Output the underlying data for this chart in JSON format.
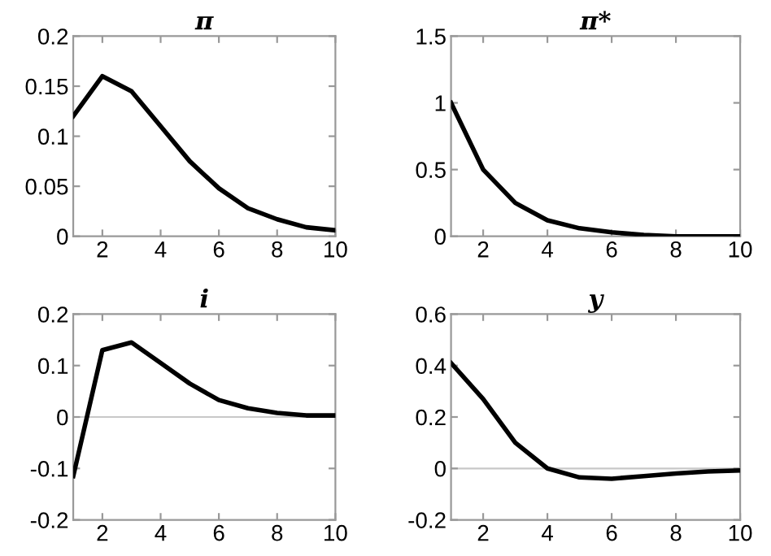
{
  "chart_data": [
    {
      "type": "line",
      "title": "π",
      "x": [
        1,
        2,
        3,
        4,
        5,
        6,
        7,
        8,
        9,
        10
      ],
      "series": [
        {
          "color": "#000000",
          "values": [
            0.12,
            0.16,
            0.145,
            0.11,
            0.075,
            0.048,
            0.028,
            0.017,
            0.009,
            0.006
          ]
        }
      ],
      "xlim": [
        1,
        10
      ],
      "xticks": [
        2,
        4,
        6,
        8,
        10
      ],
      "ylim": [
        0,
        0.2
      ],
      "yticks": [
        0,
        0.05,
        0.1,
        0.15,
        0.2
      ],
      "grid": false,
      "legend": false
    },
    {
      "type": "line",
      "title": "π*",
      "x": [
        1,
        2,
        3,
        4,
        5,
        6,
        7,
        8,
        9,
        10
      ],
      "series": [
        {
          "color": "#000000",
          "values": [
            1.0,
            0.5,
            0.25,
            0.12,
            0.06,
            0.03,
            0.01,
            0.0,
            0.0,
            0.0
          ]
        }
      ],
      "xlim": [
        1,
        10
      ],
      "xticks": [
        2,
        4,
        6,
        8,
        10
      ],
      "ylim": [
        0,
        1.5
      ],
      "yticks": [
        0,
        0.5,
        1,
        1.5
      ],
      "grid": false,
      "legend": false
    },
    {
      "type": "line",
      "title": "i",
      "x": [
        1,
        2,
        3,
        4,
        5,
        6,
        7,
        8,
        9,
        10
      ],
      "series": [
        {
          "color": "#000000",
          "values": [
            -0.115,
            0.13,
            0.145,
            0.105,
            0.065,
            0.033,
            0.017,
            0.008,
            0.003,
            0.003
          ]
        }
      ],
      "xlim": [
        1,
        10
      ],
      "xticks": [
        2,
        4,
        6,
        8,
        10
      ],
      "ylim": [
        -0.2,
        0.2
      ],
      "yticks": [
        -0.2,
        -0.1,
        0,
        0.1,
        0.2
      ],
      "ref_lines": [
        {
          "axis": "y",
          "value": 0,
          "color": "#c8c8c8"
        }
      ],
      "grid": false,
      "legend": false
    },
    {
      "type": "line",
      "title": "y",
      "x": [
        1,
        2,
        3,
        4,
        5,
        6,
        7,
        8,
        9,
        10
      ],
      "series": [
        {
          "color": "#000000",
          "values": [
            0.41,
            0.27,
            0.1,
            0.0,
            -0.035,
            -0.04,
            -0.03,
            -0.02,
            -0.012,
            -0.008
          ]
        }
      ],
      "xlim": [
        1,
        10
      ],
      "xticks": [
        2,
        4,
        6,
        8,
        10
      ],
      "ylim": [
        -0.2,
        0.6
      ],
      "yticks": [
        -0.2,
        0,
        0.2,
        0.4,
        0.6
      ],
      "ref_lines": [
        {
          "axis": "y",
          "value": 0,
          "color": "#c8c8c8"
        }
      ],
      "grid": false,
      "legend": false
    }
  ]
}
